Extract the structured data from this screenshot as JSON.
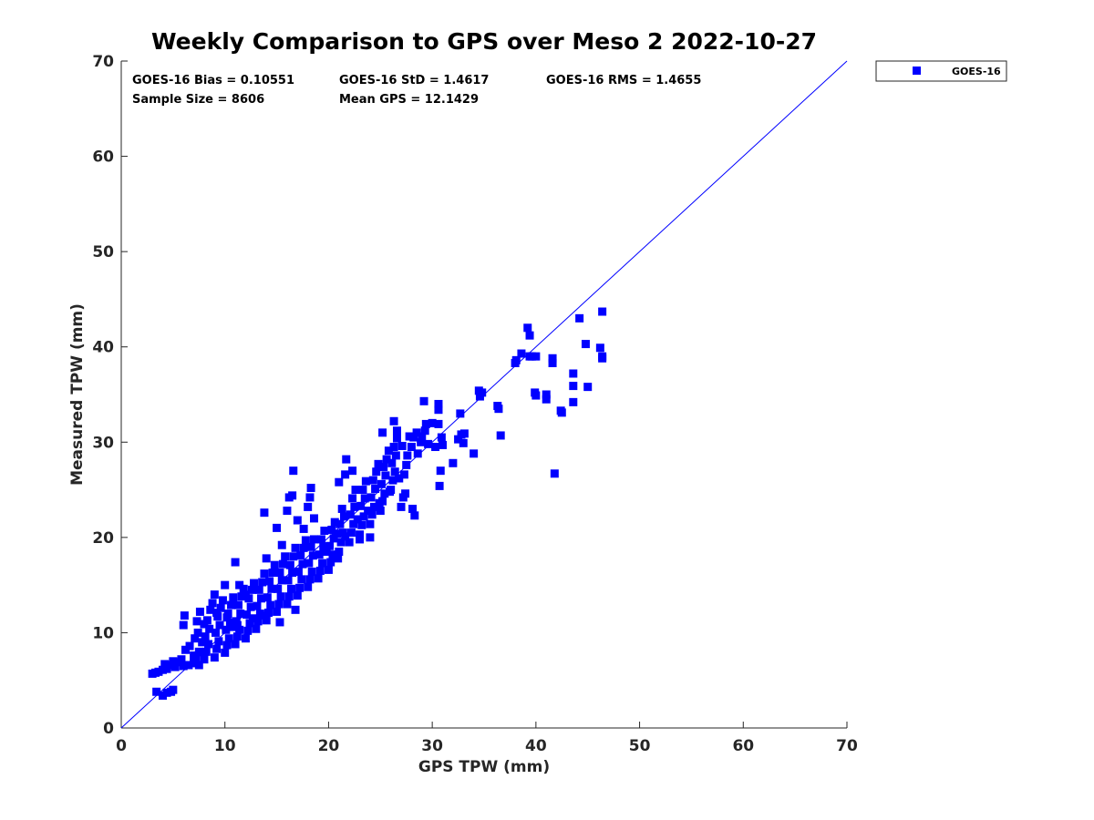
{
  "colors": {
    "series": "#0000ff",
    "axis": "#262626",
    "background": "#ffffff"
  },
  "chart_data": {
    "type": "scatter",
    "title": "Weekly Comparison to GPS over Meso 2 2022-10-27",
    "xlabel": "GPS TPW (mm)",
    "ylabel": "Measured TPW (mm)",
    "xlim": [
      0,
      70
    ],
    "ylim": [
      0,
      70
    ],
    "xticks": [
      "0",
      "10",
      "20",
      "30",
      "40",
      "50",
      "60",
      "70"
    ],
    "yticks": [
      "0",
      "10",
      "20",
      "30",
      "40",
      "50",
      "60",
      "70"
    ],
    "grid": false,
    "legend": {
      "position": "outside top-right",
      "entries": [
        "GOES-16"
      ]
    },
    "reference_line": {
      "type": "one-to-one",
      "from": [
        0,
        0
      ],
      "to": [
        70,
        70
      ]
    },
    "stats": {
      "bias": "GOES-16 Bias = 0.10551",
      "std": "GOES-16 StD = 1.4617",
      "rms": "GOES-16 RMS = 1.4655",
      "sample_size": "Sample Size = 8606",
      "mean_gps": "Mean GPS = 12.1429"
    },
    "series": [
      {
        "name": "GOES-16",
        "marker": "square",
        "sample_size": 8606,
        "points": [
          [
            3.0,
            5.7
          ],
          [
            3.3,
            5.8
          ],
          [
            3.6,
            5.9
          ],
          [
            4.0,
            6.1
          ],
          [
            4.4,
            6.2
          ],
          [
            4.8,
            6.6
          ],
          [
            5.2,
            6.4
          ],
          [
            5.6,
            6.9
          ],
          [
            6.0,
            6.5
          ],
          [
            6.5,
            6.6
          ],
          [
            7.0,
            6.8
          ],
          [
            7.5,
            6.6
          ],
          [
            3.4,
            3.8
          ],
          [
            4.0,
            3.4
          ],
          [
            4.4,
            3.7
          ],
          [
            4.8,
            3.8
          ],
          [
            5.0,
            4.0
          ],
          [
            4.2,
            6.7
          ],
          [
            5.0,
            7.0
          ],
          [
            5.8,
            7.2
          ],
          [
            6.2,
            8.2
          ],
          [
            6.6,
            8.6
          ],
          [
            6.0,
            10.8
          ],
          [
            6.1,
            11.8
          ],
          [
            7.2,
            7.3
          ],
          [
            7.5,
            8.0
          ],
          [
            7.8,
            9.0
          ],
          [
            7.4,
            10.0
          ],
          [
            7.3,
            11.2
          ],
          [
            7.6,
            12.2
          ],
          [
            7.1,
            9.4
          ],
          [
            7.0,
            7.6
          ],
          [
            8.0,
            7.2
          ],
          [
            8.2,
            8.0
          ],
          [
            8.4,
            8.8
          ],
          [
            8.1,
            9.6
          ],
          [
            8.5,
            10.4
          ],
          [
            8.3,
            11.3
          ],
          [
            8.6,
            12.4
          ],
          [
            8.8,
            13.1
          ],
          [
            8.0,
            10.9
          ],
          [
            9.0,
            7.4
          ],
          [
            9.2,
            8.3
          ],
          [
            9.4,
            9.1
          ],
          [
            9.1,
            10.0
          ],
          [
            9.5,
            10.8
          ],
          [
            9.3,
            11.7
          ],
          [
            9.6,
            12.6
          ],
          [
            9.8,
            13.4
          ],
          [
            9.0,
            14.0
          ],
          [
            9.2,
            12.1
          ],
          [
            10.0,
            7.9
          ],
          [
            10.2,
            8.7
          ],
          [
            10.4,
            9.4
          ],
          [
            10.1,
            10.3
          ],
          [
            10.5,
            11.1
          ],
          [
            10.3,
            12.0
          ],
          [
            10.6,
            12.9
          ],
          [
            10.8,
            13.7
          ],
          [
            10.0,
            15.0
          ],
          [
            10.2,
            11.6
          ],
          [
            10.7,
            10.6
          ],
          [
            11.0,
            8.8
          ],
          [
            11.2,
            9.6
          ],
          [
            11.4,
            10.3
          ],
          [
            11.1,
            11.2
          ],
          [
            11.5,
            12.0
          ],
          [
            11.3,
            12.9
          ],
          [
            11.6,
            13.8
          ],
          [
            11.8,
            14.6
          ],
          [
            11.0,
            17.4
          ],
          [
            11.4,
            15.0
          ],
          [
            11.2,
            10.8
          ],
          [
            12.0,
            9.4
          ],
          [
            12.2,
            10.2
          ],
          [
            12.4,
            11.0
          ],
          [
            12.1,
            11.9
          ],
          [
            12.5,
            12.7
          ],
          [
            12.3,
            13.6
          ],
          [
            12.6,
            14.5
          ],
          [
            12.8,
            15.2
          ],
          [
            12.0,
            14.0
          ],
          [
            12.7,
            11.5
          ],
          [
            13.0,
            10.4
          ],
          [
            13.2,
            11.2
          ],
          [
            13.4,
            12.0
          ],
          [
            13.1,
            12.8
          ],
          [
            13.5,
            13.6
          ],
          [
            13.3,
            14.5
          ],
          [
            13.6,
            15.3
          ],
          [
            13.8,
            16.2
          ],
          [
            13.9,
            11.8
          ],
          [
            14.0,
            11.3
          ],
          [
            14.2,
            12.1
          ],
          [
            14.4,
            12.9
          ],
          [
            14.1,
            13.7
          ],
          [
            14.5,
            14.6
          ],
          [
            14.3,
            15.4
          ],
          [
            14.6,
            16.3
          ],
          [
            14.8,
            17.1
          ],
          [
            14.0,
            17.8
          ],
          [
            13.8,
            22.6
          ],
          [
            15.0,
            12.2
          ],
          [
            15.2,
            13.0
          ],
          [
            15.4,
            13.8
          ],
          [
            15.1,
            14.6
          ],
          [
            15.5,
            15.5
          ],
          [
            15.3,
            16.3
          ],
          [
            15.6,
            17.2
          ],
          [
            15.8,
            18.0
          ],
          [
            15.0,
            21.0
          ],
          [
            15.3,
            11.1
          ],
          [
            15.5,
            19.2
          ],
          [
            16.0,
            13.0
          ],
          [
            16.2,
            13.8
          ],
          [
            16.4,
            14.6
          ],
          [
            16.1,
            15.5
          ],
          [
            16.5,
            16.3
          ],
          [
            16.3,
            17.1
          ],
          [
            16.6,
            18.0
          ],
          [
            16.8,
            18.9
          ],
          [
            16.2,
            24.2
          ],
          [
            16.5,
            24.4
          ],
          [
            16.6,
            27.0
          ],
          [
            16.0,
            22.8
          ],
          [
            16.8,
            12.4
          ],
          [
            17.0,
            13.9
          ],
          [
            17.2,
            14.7
          ],
          [
            17.4,
            15.6
          ],
          [
            17.1,
            16.4
          ],
          [
            17.5,
            17.2
          ],
          [
            17.3,
            18.1
          ],
          [
            17.6,
            18.9
          ],
          [
            17.8,
            19.7
          ],
          [
            17.0,
            21.8
          ],
          [
            17.6,
            20.9
          ],
          [
            18.0,
            14.8
          ],
          [
            18.2,
            15.6
          ],
          [
            18.4,
            16.4
          ],
          [
            18.1,
            17.3
          ],
          [
            18.5,
            18.1
          ],
          [
            18.3,
            19.0
          ],
          [
            18.6,
            19.8
          ],
          [
            18.0,
            23.2
          ],
          [
            18.2,
            24.2
          ],
          [
            18.3,
            25.2
          ],
          [
            18.6,
            22.0
          ],
          [
            19.0,
            15.7
          ],
          [
            19.2,
            16.5
          ],
          [
            19.4,
            17.3
          ],
          [
            19.1,
            18.2
          ],
          [
            19.5,
            19.0
          ],
          [
            19.3,
            19.8
          ],
          [
            19.6,
            20.7
          ],
          [
            19.8,
            18.5
          ],
          [
            20.0,
            16.6
          ],
          [
            20.2,
            17.4
          ],
          [
            20.4,
            18.2
          ],
          [
            20.1,
            19.1
          ],
          [
            20.5,
            19.9
          ],
          [
            20.3,
            20.8
          ],
          [
            20.6,
            21.6
          ],
          [
            20.8,
            20.4
          ],
          [
            20.9,
            17.8
          ],
          [
            21.0,
            18.5
          ],
          [
            21.2,
            19.5
          ],
          [
            21.4,
            20.5
          ],
          [
            21.1,
            21.4
          ],
          [
            21.5,
            22.2
          ],
          [
            21.3,
            23.0
          ],
          [
            21.6,
            20.1
          ],
          [
            21.0,
            25.8
          ],
          [
            22.0,
            19.5
          ],
          [
            22.2,
            20.5
          ],
          [
            22.4,
            21.4
          ],
          [
            22.1,
            22.4
          ],
          [
            22.5,
            23.2
          ],
          [
            22.3,
            24.1
          ],
          [
            22.6,
            25.0
          ],
          [
            21.6,
            26.6
          ],
          [
            21.7,
            28.2
          ],
          [
            22.3,
            27.0
          ],
          [
            22.8,
            21.9
          ],
          [
            23.0,
            20.3
          ],
          [
            23.2,
            21.3
          ],
          [
            23.4,
            22.2
          ],
          [
            23.1,
            23.3
          ],
          [
            23.5,
            24.1
          ],
          [
            23.3,
            25.0
          ],
          [
            23.6,
            25.9
          ],
          [
            23.8,
            22.8
          ],
          [
            23.0,
            19.8
          ],
          [
            24.0,
            21.4
          ],
          [
            24.2,
            22.4
          ],
          [
            24.4,
            23.2
          ],
          [
            24.1,
            24.2
          ],
          [
            24.5,
            25.1
          ],
          [
            24.3,
            26.0
          ],
          [
            24.6,
            26.9
          ],
          [
            24.8,
            27.7
          ],
          [
            24.0,
            20.0
          ],
          [
            24.9,
            23.6
          ],
          [
            25.0,
            22.8
          ],
          [
            25.2,
            23.8
          ],
          [
            25.4,
            24.6
          ],
          [
            25.1,
            25.6
          ],
          [
            25.5,
            26.5
          ],
          [
            25.3,
            27.4
          ],
          [
            25.6,
            28.2
          ],
          [
            25.8,
            29.1
          ],
          [
            25.2,
            31.0
          ],
          [
            25.9,
            24.8
          ],
          [
            26.0,
            25.0
          ],
          [
            26.2,
            26.0
          ],
          [
            26.4,
            26.9
          ],
          [
            26.1,
            27.8
          ],
          [
            26.5,
            28.6
          ],
          [
            26.3,
            29.5
          ],
          [
            26.6,
            30.4
          ],
          [
            26.8,
            26.2
          ],
          [
            26.3,
            32.2
          ],
          [
            26.6,
            31.2
          ],
          [
            27.0,
            23.2
          ],
          [
            27.2,
            24.2
          ],
          [
            27.3,
            26.6
          ],
          [
            27.5,
            27.6
          ],
          [
            27.6,
            28.6
          ],
          [
            27.1,
            29.6
          ],
          [
            27.8,
            30.6
          ],
          [
            27.4,
            24.6
          ],
          [
            28.0,
            29.5
          ],
          [
            28.2,
            30.5
          ],
          [
            28.5,
            31.0
          ],
          [
            28.1,
            23.0
          ],
          [
            28.3,
            22.3
          ],
          [
            28.6,
            28.8
          ],
          [
            28.9,
            30.0
          ],
          [
            29.0,
            30.6
          ],
          [
            29.3,
            31.2
          ],
          [
            29.6,
            29.8
          ],
          [
            29.2,
            34.3
          ],
          [
            29.4,
            31.9
          ],
          [
            30.0,
            32.0
          ],
          [
            30.3,
            29.5
          ],
          [
            30.6,
            31.9
          ],
          [
            30.9,
            30.5
          ],
          [
            30.6,
            34.0
          ],
          [
            30.6,
            33.4
          ],
          [
            31.0,
            29.7
          ],
          [
            30.8,
            27.0
          ],
          [
            30.7,
            25.4
          ],
          [
            32.0,
            27.8
          ],
          [
            32.5,
            30.3
          ],
          [
            32.8,
            30.8
          ],
          [
            33.1,
            30.9
          ],
          [
            33.0,
            29.9
          ],
          [
            32.7,
            33.0
          ],
          [
            34.0,
            28.8
          ],
          [
            34.5,
            35.4
          ],
          [
            34.6,
            34.8
          ],
          [
            34.8,
            35.2
          ],
          [
            36.3,
            33.8
          ],
          [
            36.4,
            33.5
          ],
          [
            36.6,
            30.7
          ],
          [
            38.0,
            38.3
          ],
          [
            38.1,
            38.6
          ],
          [
            38.6,
            39.3
          ],
          [
            39.2,
            42.0
          ],
          [
            39.4,
            41.2
          ],
          [
            39.4,
            39.0
          ],
          [
            39.6,
            39.0
          ],
          [
            40.0,
            39.0
          ],
          [
            39.9,
            35.2
          ],
          [
            40.0,
            34.9
          ],
          [
            41.0,
            35.0
          ],
          [
            41.0,
            34.5
          ],
          [
            41.6,
            38.8
          ],
          [
            41.6,
            38.3
          ],
          [
            41.8,
            26.7
          ],
          [
            42.4,
            33.3
          ],
          [
            42.5,
            33.1
          ],
          [
            43.6,
            37.2
          ],
          [
            43.6,
            35.9
          ],
          [
            43.6,
            34.2
          ],
          [
            44.2,
            43.0
          ],
          [
            44.8,
            40.3
          ],
          [
            45.0,
            35.8
          ],
          [
            46.2,
            39.9
          ],
          [
            46.4,
            39.0
          ],
          [
            46.4,
            38.8
          ],
          [
            46.4,
            43.7
          ]
        ]
      }
    ]
  }
}
